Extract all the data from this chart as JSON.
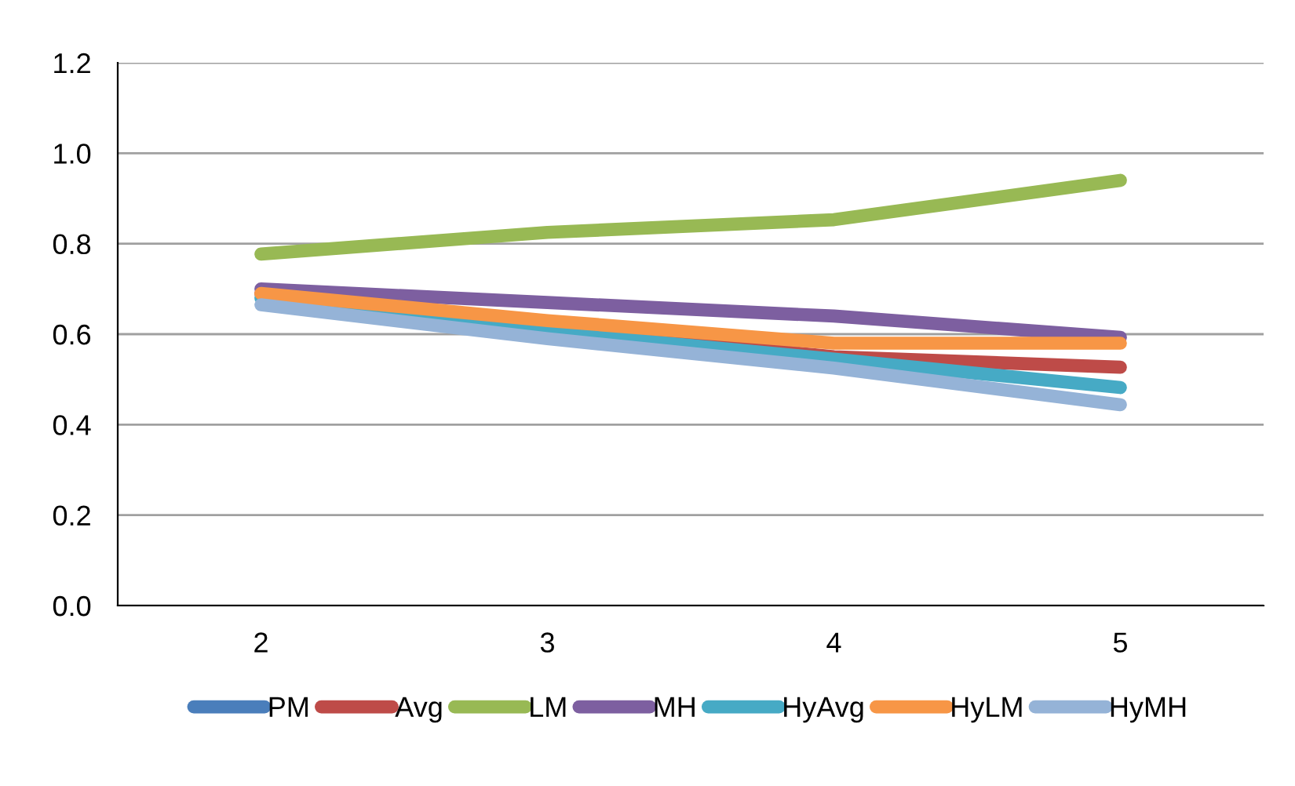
{
  "chart_data": {
    "type": "line",
    "categories": [
      "2",
      "3",
      "4",
      "5"
    ],
    "ylim": [
      0,
      1.2
    ],
    "yticks": [
      {
        "value": 0,
        "label": "0.0"
      },
      {
        "value": 0.2,
        "label": "0.2"
      },
      {
        "value": 0.4,
        "label": "0.4"
      },
      {
        "value": 0.6,
        "label": "0.6"
      },
      {
        "value": 0.8,
        "label": "0.8"
      },
      {
        "value": 1,
        "label": "1.0"
      },
      {
        "value": 1.2,
        "label": "1.2"
      }
    ],
    "grid": "y",
    "legend": "bottom",
    "marker": "none",
    "line_style": "solid",
    "series": [
      {
        "name": "PM",
        "color": "#4a7ebb",
        "values": [
          null,
          null,
          null,
          null
        ]
      },
      {
        "name": "Avg",
        "color": "#be4b48",
        "values": [
          0.69,
          0.615,
          0.55,
          0.527
        ]
      },
      {
        "name": "LM",
        "color": "#98b954",
        "values": [
          0.777,
          0.825,
          0.853,
          0.94
        ]
      },
      {
        "name": "MH",
        "color": "#7d5fa0",
        "values": [
          0.7,
          0.67,
          0.64,
          0.593
        ]
      },
      {
        "name": "HyAvg",
        "color": "#46aac5",
        "values": [
          0.68,
          0.605,
          0.545,
          0.482
        ]
      },
      {
        "name": "HyLM",
        "color": "#f79646",
        "values": [
          0.69,
          0.63,
          0.58,
          0.58
        ]
      },
      {
        "name": "HyMH",
        "color": "#95b3d7",
        "values": [
          0.665,
          0.59,
          0.525,
          0.444
        ]
      }
    ]
  }
}
